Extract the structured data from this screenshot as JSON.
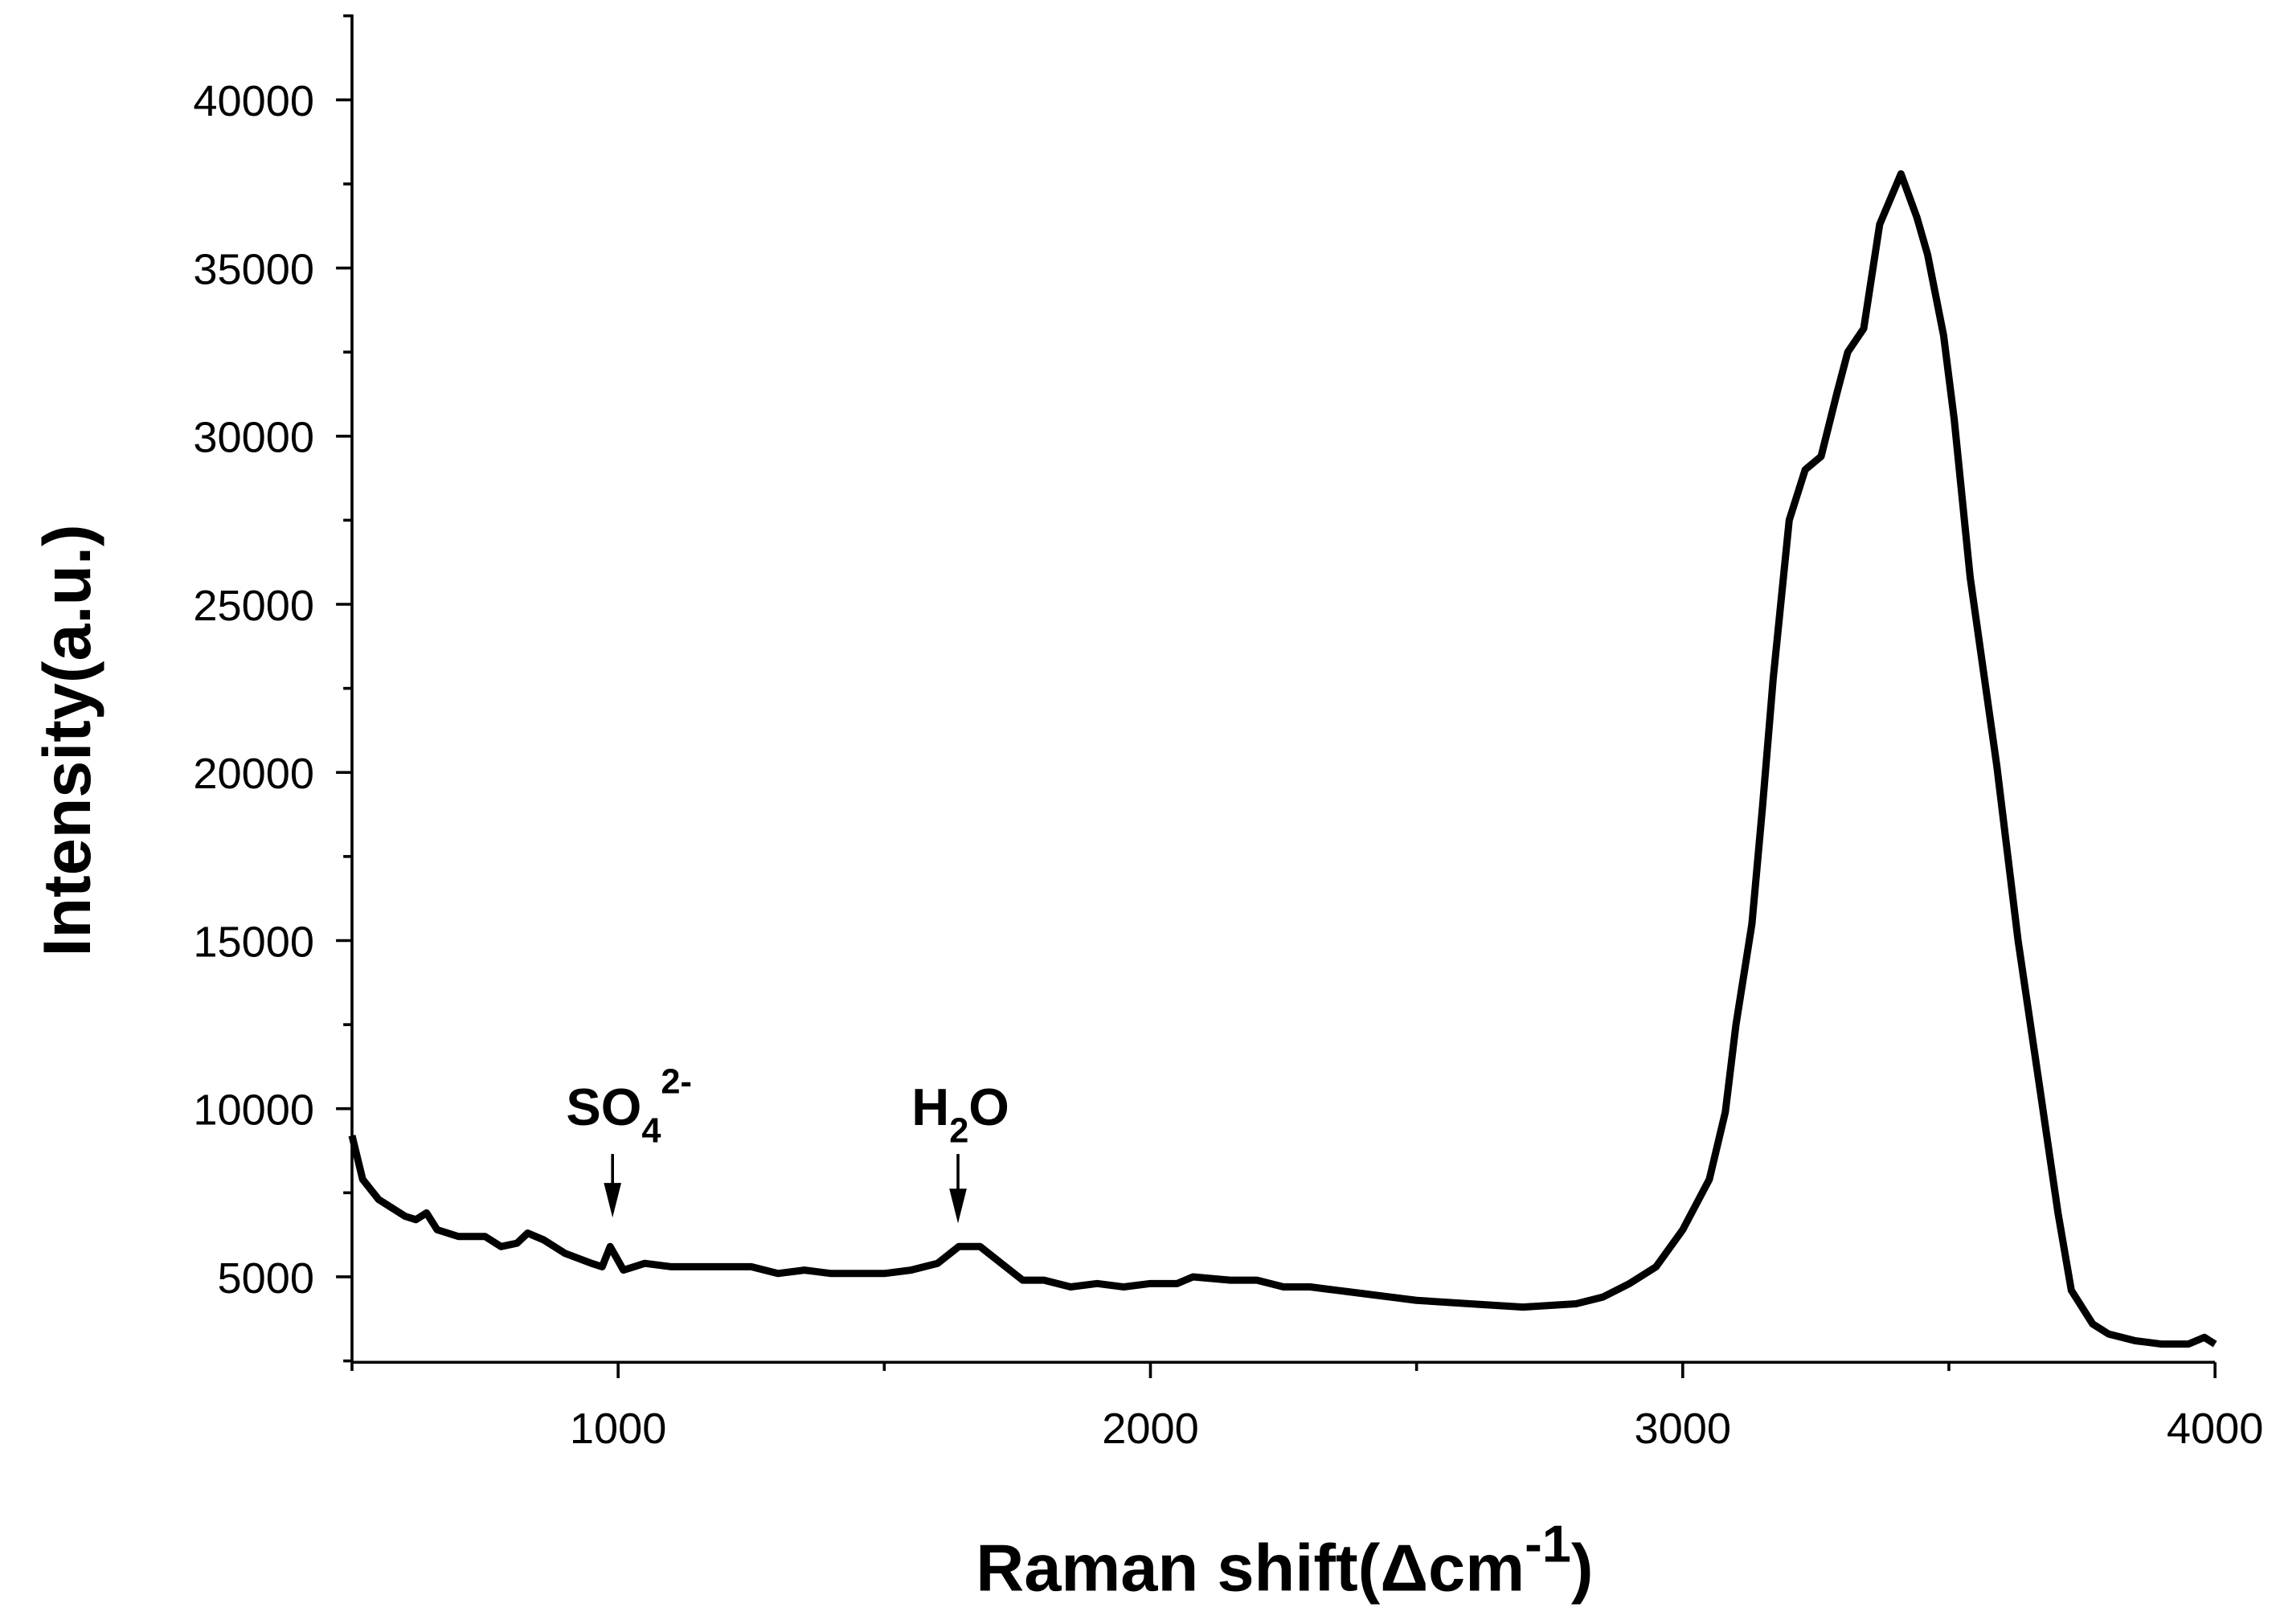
{
  "chart_data": {
    "type": "line",
    "x_label": "Raman shift(Δcm",
    "x_label_sup": "-1",
    "x_label_end": ")",
    "y_label": "Intensity(a.u.)",
    "xlim": [
      500,
      4000
    ],
    "xticks": [
      1000,
      2000,
      3000,
      4000
    ],
    "x_minor_ticks": [
      500,
      1500,
      2500,
      3500
    ],
    "ylim": [
      2460,
      42540
    ],
    "yticks": [
      5000,
      10000,
      15000,
      20000,
      25000,
      30000,
      35000,
      40000
    ],
    "y_minor_ticks": [
      2500,
      7500,
      12500,
      17500,
      22500,
      27500,
      32500,
      37500,
      42500
    ],
    "color": "#000000",
    "annotations": [
      {
        "text": "SO",
        "sub": "4",
        "sup": "2-"
      },
      {
        "text": "H",
        "sub": "2",
        "text_end": "O"
      }
    ],
    "x": [
      500,
      520,
      550,
      600,
      620,
      640,
      660,
      700,
      750,
      780,
      810,
      830,
      860,
      900,
      950,
      970,
      985,
      1010,
      1050,
      1100,
      1150,
      1200,
      1250,
      1300,
      1350,
      1400,
      1450,
      1500,
      1550,
      1600,
      1640,
      1680,
      1720,
      1760,
      1800,
      1850,
      1900,
      1950,
      2000,
      2050,
      2080,
      2150,
      2200,
      2250,
      2300,
      2350,
      2400,
      2450,
      2500,
      2600,
      2700,
      2800,
      2850,
      2900,
      2950,
      3000,
      3050,
      3080,
      3100,
      3130,
      3150,
      3170,
      3200,
      3230,
      3260,
      3290,
      3310,
      3340,
      3370,
      3410,
      3440,
      3460,
      3490,
      3510,
      3540,
      3590,
      3630,
      3670,
      3705,
      3730,
      3770,
      3800,
      3850,
      3900,
      3950,
      3980,
      4000
    ],
    "values": [
      9200,
      7900,
      7300,
      6800,
      6700,
      6900,
      6400,
      6200,
      6200,
      5900,
      6000,
      6300,
      6100,
      5700,
      5400,
      5300,
      5900,
      5200,
      5400,
      5300,
      5300,
      5300,
      5300,
      5100,
      5200,
      5100,
      5100,
      5100,
      5200,
      5400,
      5900,
      5900,
      5400,
      4900,
      4900,
      4700,
      4800,
      4700,
      4800,
      4800,
      5000,
      4900,
      4900,
      4700,
      4700,
      4600,
      4500,
      4400,
      4300,
      4200,
      4100,
      4200,
      4400,
      4800,
      5300,
      6400,
      7900,
      9900,
      12500,
      15500,
      19000,
      22800,
      27500,
      29000,
      29400,
      31300,
      32500,
      33200,
      36300,
      37800,
      36500,
      35400,
      33000,
      30500,
      25800,
      20200,
      15000,
      10700,
      6900,
      4600,
      3600,
      3300,
      3100,
      3000,
      3000,
      3200,
      3000
    ]
  }
}
